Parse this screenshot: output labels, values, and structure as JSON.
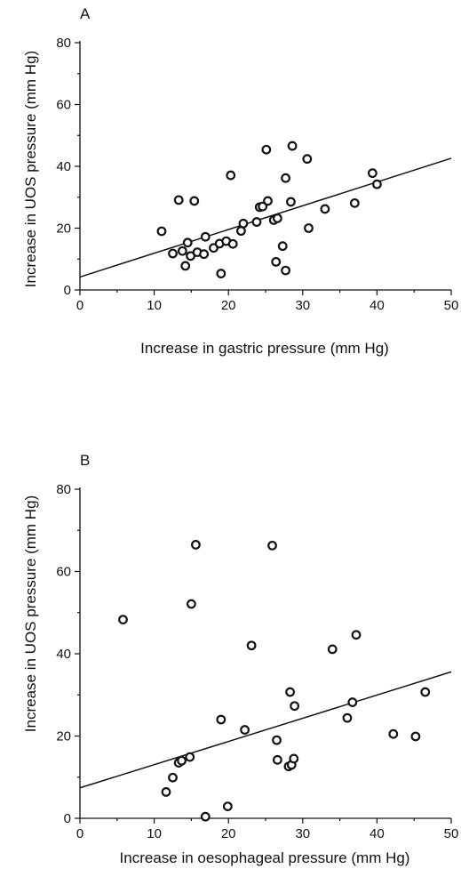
{
  "chart_data": [
    {
      "type": "scatter",
      "panel_label": "A",
      "xlabel": "Increase in gastric pressure (mm Hg)",
      "ylabel": "Increase in UOS pressure (mm Hg)",
      "xlim": [
        0,
        50
      ],
      "ylim": [
        0,
        80
      ],
      "xticks": [
        "0",
        "10",
        "20",
        "30",
        "40",
        "50"
      ],
      "yticks": [
        "0",
        "20",
        "40",
        "60",
        "80"
      ],
      "grid": false,
      "marker": "open-circle",
      "points": [
        {
          "x": 11.0,
          "y": 19.0
        },
        {
          "x": 12.5,
          "y": 11.8
        },
        {
          "x": 13.3,
          "y": 29.1
        },
        {
          "x": 13.8,
          "y": 12.6
        },
        {
          "x": 14.2,
          "y": 7.8
        },
        {
          "x": 14.5,
          "y": 15.3
        },
        {
          "x": 14.9,
          "y": 11.0
        },
        {
          "x": 15.4,
          "y": 28.8
        },
        {
          "x": 15.8,
          "y": 12.2
        },
        {
          "x": 16.7,
          "y": 11.6
        },
        {
          "x": 16.9,
          "y": 17.2
        },
        {
          "x": 18.0,
          "y": 13.6
        },
        {
          "x": 18.8,
          "y": 15.0
        },
        {
          "x": 19.0,
          "y": 5.3
        },
        {
          "x": 19.7,
          "y": 15.8
        },
        {
          "x": 20.3,
          "y": 37.1
        },
        {
          "x": 20.6,
          "y": 14.9
        },
        {
          "x": 21.7,
          "y": 19.1
        },
        {
          "x": 22.0,
          "y": 21.5
        },
        {
          "x": 23.8,
          "y": 22.0
        },
        {
          "x": 24.2,
          "y": 26.8
        },
        {
          "x": 24.6,
          "y": 27.0
        },
        {
          "x": 25.1,
          "y": 45.4
        },
        {
          "x": 25.3,
          "y": 28.8
        },
        {
          "x": 26.1,
          "y": 22.6
        },
        {
          "x": 26.4,
          "y": 9.1
        },
        {
          "x": 26.6,
          "y": 23.2
        },
        {
          "x": 27.3,
          "y": 14.2
        },
        {
          "x": 27.7,
          "y": 6.3
        },
        {
          "x": 27.7,
          "y": 36.2
        },
        {
          "x": 28.4,
          "y": 28.5
        },
        {
          "x": 28.6,
          "y": 46.6
        },
        {
          "x": 30.6,
          "y": 42.4
        },
        {
          "x": 30.8,
          "y": 20.0
        },
        {
          "x": 33.0,
          "y": 26.2
        },
        {
          "x": 37.0,
          "y": 28.1
        },
        {
          "x": 39.4,
          "y": 37.8
        },
        {
          "x": 40.0,
          "y": 34.2
        }
      ],
      "regression_line": {
        "x": [
          0,
          50
        ],
        "y": [
          4.2,
          42.6
        ]
      }
    },
    {
      "type": "scatter",
      "panel_label": "B",
      "xlabel": "Increase in oesophageal pressure (mm Hg)",
      "ylabel": "Increase in UOS pressure (mm Hg)",
      "xlim": [
        0,
        50
      ],
      "ylim": [
        0,
        80
      ],
      "xticks": [
        "0",
        "10",
        "20",
        "30",
        "40",
        "50"
      ],
      "yticks": [
        "0",
        "20",
        "40",
        "60",
        "80"
      ],
      "grid": false,
      "marker": "open-circle",
      "points": [
        {
          "x": 5.8,
          "y": 48.3
        },
        {
          "x": 11.6,
          "y": 6.4
        },
        {
          "x": 12.5,
          "y": 9.9
        },
        {
          "x": 13.3,
          "y": 13.5
        },
        {
          "x": 13.7,
          "y": 14.0
        },
        {
          "x": 14.8,
          "y": 14.9
        },
        {
          "x": 15.0,
          "y": 52.1
        },
        {
          "x": 15.6,
          "y": 66.5
        },
        {
          "x": 16.9,
          "y": 0.4
        },
        {
          "x": 19.0,
          "y": 24.0
        },
        {
          "x": 19.9,
          "y": 2.9
        },
        {
          "x": 22.2,
          "y": 21.5
        },
        {
          "x": 23.1,
          "y": 42.0
        },
        {
          "x": 25.9,
          "y": 66.3
        },
        {
          "x": 26.5,
          "y": 19.0
        },
        {
          "x": 26.6,
          "y": 14.2
        },
        {
          "x": 28.1,
          "y": 12.6
        },
        {
          "x": 28.3,
          "y": 30.7
        },
        {
          "x": 28.5,
          "y": 13.0
        },
        {
          "x": 28.8,
          "y": 14.5
        },
        {
          "x": 28.9,
          "y": 27.3
        },
        {
          "x": 34.0,
          "y": 41.1
        },
        {
          "x": 36.0,
          "y": 24.4
        },
        {
          "x": 36.7,
          "y": 28.2
        },
        {
          "x": 37.2,
          "y": 44.6
        },
        {
          "x": 42.2,
          "y": 20.5
        },
        {
          "x": 45.2,
          "y": 19.9
        },
        {
          "x": 46.5,
          "y": 30.7
        }
      ],
      "regression_line": {
        "x": [
          0,
          50
        ],
        "y": [
          7.4,
          35.6
        ]
      }
    }
  ]
}
